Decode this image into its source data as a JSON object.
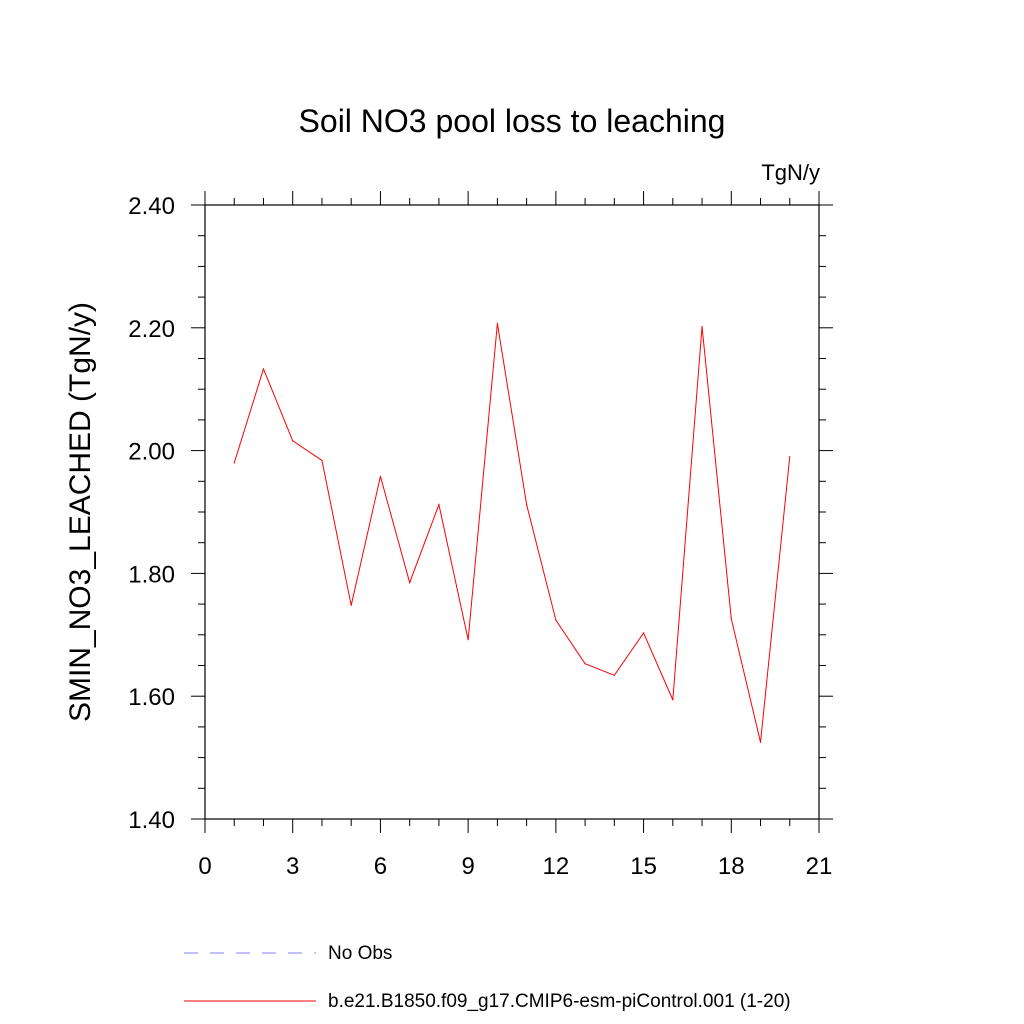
{
  "chart_data": {
    "type": "line",
    "title": "Soil NO3 pool loss to leaching",
    "units_label": "TgN/y",
    "ylabel": "SMIN_NO3_LEACHED  (TgN/y)",
    "xlabel": "",
    "xlim": [
      0,
      21
    ],
    "ylim": [
      1.4,
      2.4
    ],
    "x_ticks": [
      "0",
      "3",
      "6",
      "9",
      "12",
      "15",
      "18",
      "21"
    ],
    "y_ticks": [
      "1.40",
      "1.60",
      "1.80",
      "2.00",
      "2.20",
      "2.40"
    ],
    "grid": false,
    "legend_position": "bottom",
    "series": [
      {
        "name": "b.e21.B1850.f09_g17.CMIP6-esm-piControl.001 (1-20)",
        "color": "#ff0000",
        "style": "solid",
        "x": [
          1,
          2,
          3,
          4,
          5,
          6,
          7,
          8,
          9,
          10,
          11,
          12,
          13,
          14,
          15,
          16,
          17,
          18,
          19,
          20
        ],
        "values": [
          1.98,
          2.133,
          2.016,
          1.984,
          1.748,
          1.958,
          1.785,
          1.912,
          1.692,
          2.207,
          1.912,
          1.724,
          1.653,
          1.634,
          1.703,
          1.594,
          2.202,
          1.726,
          1.525,
          1.99
        ]
      }
    ],
    "legend": [
      {
        "label": "No Obs",
        "color": "#8080ff",
        "style": "dashed"
      },
      {
        "label": "b.e21.B1850.f09_g17.CMIP6-esm-piControl.001 (1-20)",
        "color": "#ff0000",
        "style": "solid"
      }
    ]
  }
}
